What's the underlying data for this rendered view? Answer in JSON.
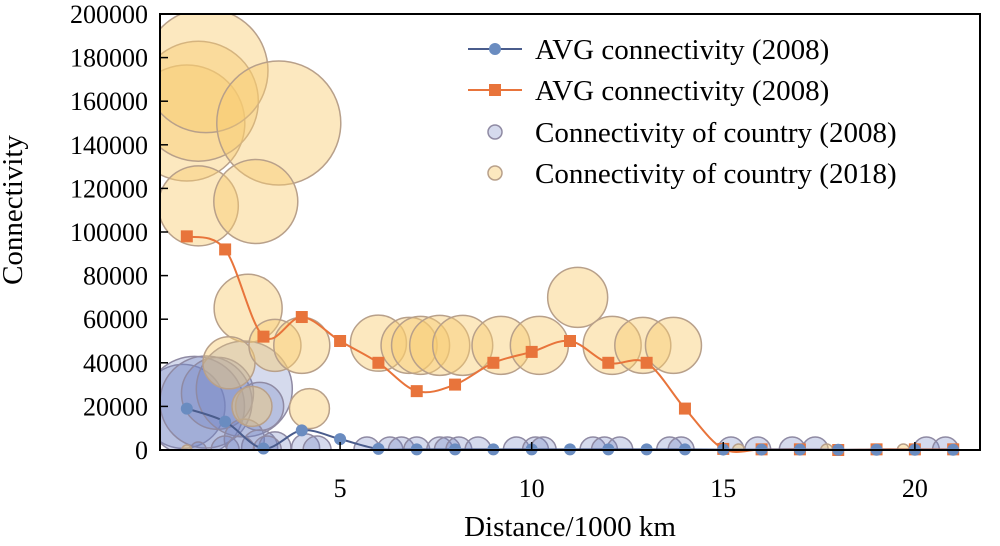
{
  "chart_data": {
    "type": "scatter",
    "xlabel": "Distance/1000 km",
    "ylabel": "Connectivity",
    "xlim": [
      0.3,
      21.7
    ],
    "ylim": [
      0,
      200000
    ],
    "xticks": [
      "5",
      "10",
      "15",
      "20"
    ],
    "xtick_values": [
      5,
      10,
      15,
      20
    ],
    "yticks": [
      "0",
      "20000",
      "40000",
      "60000",
      "80000",
      "100000",
      "120000",
      "140000",
      "160000",
      "180000",
      "200000"
    ],
    "ytick_values": [
      0,
      20000,
      40000,
      60000,
      80000,
      100000,
      120000,
      140000,
      160000,
      180000,
      200000
    ],
    "grid": false,
    "legend_position": "top-right",
    "colors": {
      "avg2008": "#4a5c8c",
      "avg2008_marker": "#6a8cc0",
      "avg2018": "#e8743b",
      "bubble2008_fill": "rgba(116,134,196,0.30)",
      "bubble2008_stroke": "#8f8aa3",
      "bubble2018_fill": "rgba(248,204,112,0.45)",
      "bubble2018_stroke": "#b8a08a"
    },
    "series": [
      {
        "name": "AVG connectivity (2008)",
        "kind": "line",
        "marker": "circle",
        "x": [
          1,
          2,
          3,
          4,
          5,
          6,
          7,
          8,
          9,
          10,
          11,
          12,
          13,
          14,
          15,
          16,
          17,
          18,
          19,
          20,
          21
        ],
        "y": [
          19000,
          13000,
          700,
          9000,
          5000,
          500,
          300,
          300,
          300,
          300,
          300,
          300,
          300,
          300,
          200,
          200,
          200,
          100,
          100,
          100,
          100
        ]
      },
      {
        "name": "AVG connectivity (2008)",
        "kind": "line",
        "marker": "square",
        "x": [
          1,
          2,
          3,
          4,
          5,
          6,
          7,
          8,
          9,
          10,
          11,
          12,
          13,
          14,
          15,
          16,
          17,
          18,
          19,
          20,
          21
        ],
        "y": [
          98000,
          92000,
          52000,
          61000,
          50000,
          40000,
          27000,
          30000,
          40000,
          45000,
          50000,
          40000,
          40000,
          19000,
          500,
          300,
          300,
          0,
          300,
          300,
          300
        ]
      },
      {
        "name": "Connectivity of country (2008)",
        "kind": "bubble",
        "points": [
          {
            "x": 0.9,
            "y": 20000,
            "s": 42
          },
          {
            "x": 1.2,
            "y": 20000,
            "s": 50
          },
          {
            "x": 1.5,
            "y": 22000,
            "s": 46
          },
          {
            "x": 1.8,
            "y": 26000,
            "s": 36
          },
          {
            "x": 2.5,
            "y": 28000,
            "s": 48
          },
          {
            "x": 2.9,
            "y": 20000,
            "s": 24
          },
          {
            "x": 2.5,
            "y": 5000,
            "s": 20
          },
          {
            "x": 2.9,
            "y": 1000,
            "s": 18
          },
          {
            "x": 3.3,
            "y": 1000,
            "s": 16
          },
          {
            "x": 4.1,
            "y": 1000,
            "s": 14
          },
          {
            "x": 1.3,
            "y": 0,
            "s": 8
          },
          {
            "x": 2.0,
            "y": 0,
            "s": 14
          },
          {
            "x": 2.4,
            "y": 0,
            "s": 14
          },
          {
            "x": 3.1,
            "y": 0,
            "s": 14
          },
          {
            "x": 4.4,
            "y": 0,
            "s": 14
          },
          {
            "x": 5.7,
            "y": 0,
            "s": 13
          },
          {
            "x": 6.3,
            "y": 0,
            "s": 13
          },
          {
            "x": 6.6,
            "y": 0,
            "s": 13
          },
          {
            "x": 7.0,
            "y": 0,
            "s": 13
          },
          {
            "x": 7.6,
            "y": 0,
            "s": 13
          },
          {
            "x": 7.8,
            "y": 0,
            "s": 13
          },
          {
            "x": 8.1,
            "y": 0,
            "s": 13
          },
          {
            "x": 8.6,
            "y": 0,
            "s": 13
          },
          {
            "x": 9.6,
            "y": 0,
            "s": 13
          },
          {
            "x": 10.1,
            "y": 0,
            "s": 13
          },
          {
            "x": 10.3,
            "y": 0,
            "s": 13
          },
          {
            "x": 11.6,
            "y": 0,
            "s": 13
          },
          {
            "x": 11.9,
            "y": 0,
            "s": 13
          },
          {
            "x": 12.3,
            "y": 0,
            "s": 13
          },
          {
            "x": 13.6,
            "y": 0,
            "s": 13
          },
          {
            "x": 13.9,
            "y": 0,
            "s": 13
          },
          {
            "x": 15.2,
            "y": 0,
            "s": 13
          },
          {
            "x": 15.9,
            "y": 0,
            "s": 13
          },
          {
            "x": 16.8,
            "y": 0,
            "s": 13
          },
          {
            "x": 17.4,
            "y": 0,
            "s": 13
          },
          {
            "x": 20.3,
            "y": 0,
            "s": 13
          },
          {
            "x": 20.8,
            "y": 0,
            "s": 13
          }
        ]
      },
      {
        "name": "Connectivity of country (2018)",
        "kind": "bubble",
        "points": [
          {
            "x": 1.0,
            "y": 150000,
            "s": 58
          },
          {
            "x": 1.3,
            "y": 160000,
            "s": 60
          },
          {
            "x": 1.5,
            "y": 174000,
            "s": 62
          },
          {
            "x": 3.4,
            "y": 150000,
            "s": 62
          },
          {
            "x": 1.3,
            "y": 112000,
            "s": 40
          },
          {
            "x": 2.8,
            "y": 114000,
            "s": 42
          },
          {
            "x": 2.6,
            "y": 65000,
            "s": 34
          },
          {
            "x": 2.1,
            "y": 40000,
            "s": 26
          },
          {
            "x": 3.3,
            "y": 48000,
            "s": 26
          },
          {
            "x": 4.0,
            "y": 48000,
            "s": 28
          },
          {
            "x": 2.7,
            "y": 20000,
            "s": 20
          },
          {
            "x": 4.2,
            "y": 19000,
            "s": 20
          },
          {
            "x": 6.0,
            "y": 49000,
            "s": 28
          },
          {
            "x": 6.8,
            "y": 48000,
            "s": 28
          },
          {
            "x": 7.1,
            "y": 48000,
            "s": 29
          },
          {
            "x": 7.6,
            "y": 48000,
            "s": 30
          },
          {
            "x": 8.2,
            "y": 48000,
            "s": 30
          },
          {
            "x": 9.2,
            "y": 48000,
            "s": 29
          },
          {
            "x": 10.2,
            "y": 48000,
            "s": 29
          },
          {
            "x": 11.2,
            "y": 70000,
            "s": 30
          },
          {
            "x": 12.1,
            "y": 48000,
            "s": 29
          },
          {
            "x": 12.9,
            "y": 48000,
            "s": 28
          },
          {
            "x": 13.7,
            "y": 48000,
            "s": 28
          },
          {
            "x": 1.0,
            "y": 0,
            "s": 5
          },
          {
            "x": 15.4,
            "y": 0,
            "s": 6
          },
          {
            "x": 17.7,
            "y": 0,
            "s": 6
          },
          {
            "x": 19.7,
            "y": 0,
            "s": 6
          }
        ]
      }
    ]
  }
}
